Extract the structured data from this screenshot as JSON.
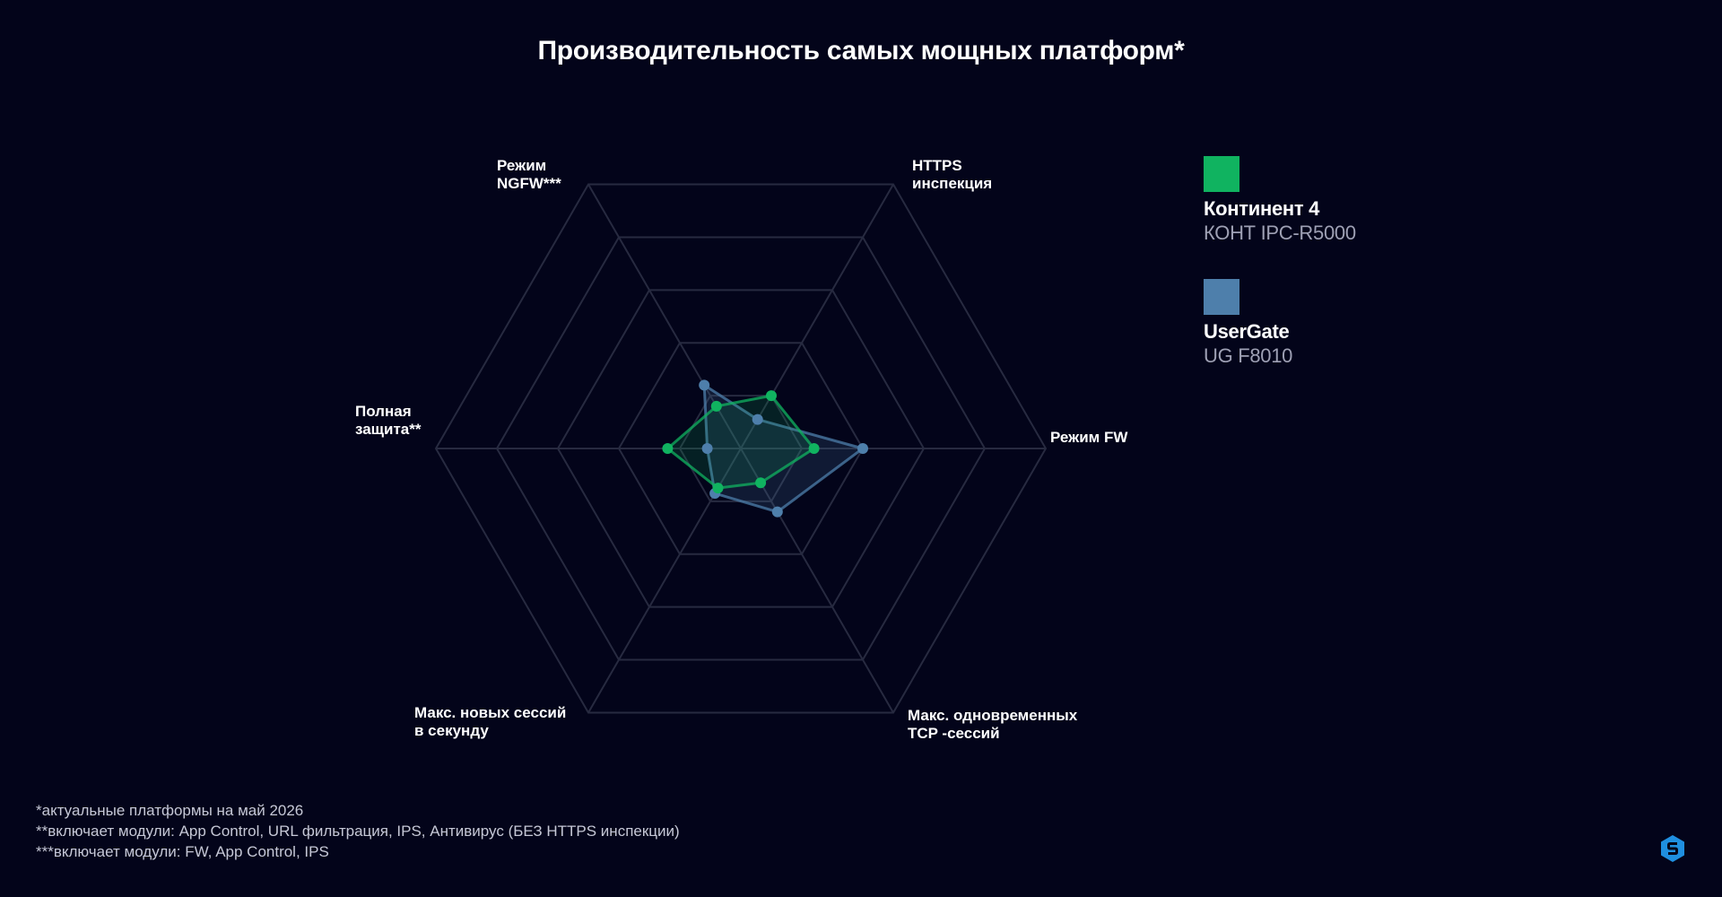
{
  "title": "Производительность самых мощных платформ*",
  "colors": {
    "background": "#03041a",
    "grid": "#272a40",
    "kontinent": "#10b360",
    "usergate": "#4e7fab",
    "logo": "#1f8fe0"
  },
  "legend": {
    "items": [
      {
        "name": "Континент 4",
        "model": "КОНТ IPC-R5000",
        "color": "#10b360"
      },
      {
        "name": "UserGate",
        "model": "UG F8010",
        "color": "#4e7fab"
      }
    ]
  },
  "footnotes": [
    "*актуальные платформы на май 2026",
    "**включает модули: App Control, URL фильтрация, IPS, Антивирус (БЕЗ HTTPS инспекции)",
    "***включает модули: FW, App Control, IPS"
  ],
  "logo_icon": "shield-logo-icon",
  "chart_data": {
    "type": "radar",
    "title": "Производительность самых мощных платформ*",
    "axes": [
      "Режим FW",
      "HTTPS\nинспекция",
      "Режим\nNGFW***",
      "Полная\nзащита**",
      "Макс. новых сессий\nв секунду",
      "Макс. одновременных\nTCP -сессий"
    ],
    "rings": 5,
    "range": [
      0,
      5
    ],
    "grid": true,
    "legend_position": "top-right",
    "series": [
      {
        "name": "Континент 4",
        "color": "#10b360",
        "values": [
          1.2,
          1.0,
          0.8,
          1.2,
          0.75,
          0.65
        ]
      },
      {
        "name": "UserGate",
        "color": "#4e7fab",
        "values": [
          2.0,
          0.55,
          1.2,
          0.55,
          0.85,
          1.2
        ]
      }
    ]
  }
}
